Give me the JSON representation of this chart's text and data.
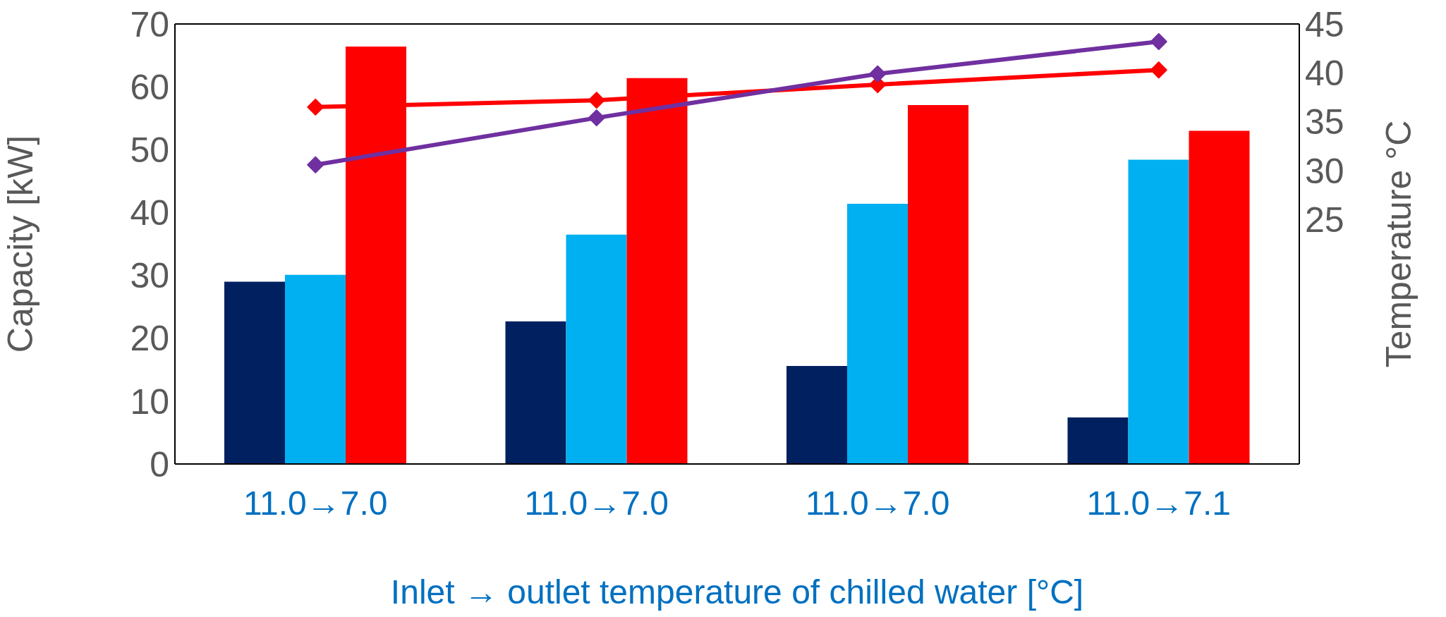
{
  "chart_data": {
    "type": "bar",
    "xlabel": "Inlet → outlet temperature of chilled water [°C]",
    "ylabel": "Capacity [kW]",
    "y2label": "Temperature °C",
    "categories": [
      "11.0→7.0",
      "11.0→7.0",
      "11.0→7.0",
      "11.0→7.1"
    ],
    "series": [
      {
        "color": "#002060",
        "values": [
          29.0,
          22.7,
          15.6,
          7.4
        ]
      },
      {
        "color": "#00b0f0",
        "values": [
          30.1,
          36.5,
          41.4,
          48.4
        ]
      },
      {
        "color": "#ff0000",
        "values": [
          66.4,
          61.4,
          57.1,
          53.0
        ]
      },
      {
        "type": "line",
        "axis": "y2",
        "color": "#ff0000",
        "values": [
          36.5,
          37.2,
          38.8,
          40.3
        ]
      },
      {
        "type": "line",
        "axis": "y2",
        "color": "#7030a0",
        "values": [
          30.6,
          35.4,
          39.9,
          43.2
        ]
      }
    ],
    "ylim": [
      0,
      70
    ],
    "yticks": [
      0,
      10,
      20,
      30,
      40,
      50,
      60,
      70
    ],
    "y2lim": [
      0,
      45
    ],
    "y2ticks": [
      25,
      30,
      35,
      40,
      45
    ],
    "grid": false,
    "legend": false,
    "marker": "diamond",
    "line_style": "solid"
  }
}
